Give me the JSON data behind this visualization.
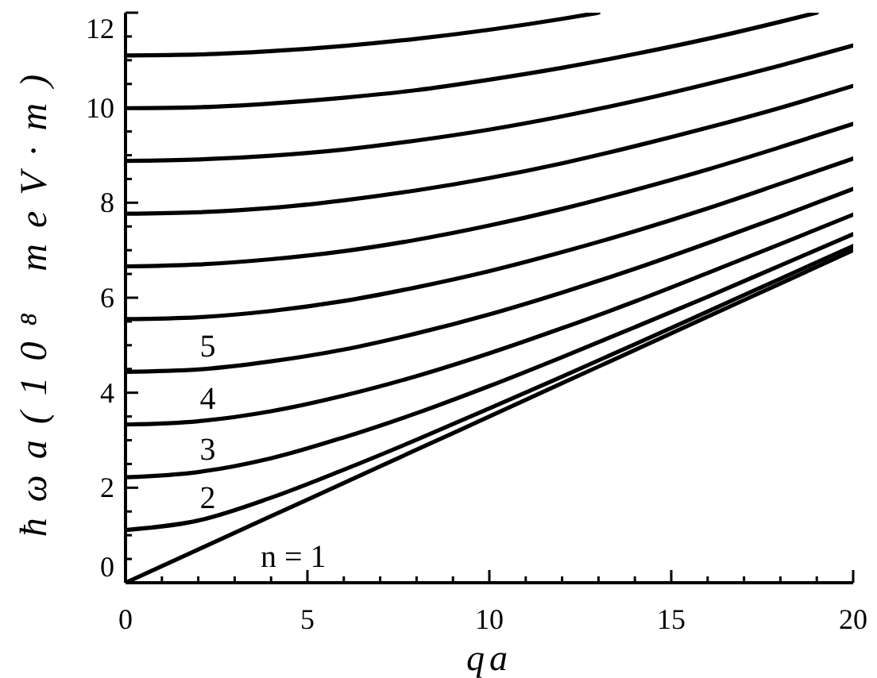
{
  "chart_data": {
    "type": "line",
    "xlabel": "qa",
    "ylabel": "ħωa(10⁸ meV·m)",
    "x": [
      0,
      2,
      4,
      6,
      8,
      10,
      12,
      14,
      16,
      18,
      20
    ],
    "series": [
      {
        "name": "n = 1",
        "color": "#000000",
        "values": [
          0,
          0.7,
          1.4,
          2.1,
          2.8,
          3.5,
          4.2,
          4.9,
          5.6,
          6.3,
          7.0
        ]
      },
      {
        "name": "2",
        "color": "#000000",
        "values": [
          1.11,
          1.31,
          1.79,
          2.38,
          3.01,
          3.67,
          4.34,
          5.02,
          5.71,
          6.4,
          7.09
        ]
      },
      {
        "name": "3",
        "color": "#000000",
        "values": [
          2.22,
          2.33,
          2.62,
          3.06,
          3.57,
          4.14,
          4.75,
          5.38,
          6.02,
          6.68,
          7.34
        ]
      },
      {
        "name": "4",
        "color": "#000000",
        "values": [
          3.33,
          3.4,
          3.61,
          3.94,
          4.35,
          4.83,
          5.36,
          5.92,
          6.52,
          7.13,
          7.75
        ]
      },
      {
        "name": "5",
        "color": "#000000",
        "values": [
          4.44,
          4.49,
          4.66,
          4.91,
          5.25,
          5.65,
          6.11,
          6.61,
          7.15,
          7.71,
          8.29
        ]
      },
      {
        "color": "#000000",
        "values": [
          5.55,
          5.59,
          5.72,
          5.93,
          6.22,
          6.56,
          6.96,
          7.4,
          7.88,
          8.4,
          8.93
        ]
      },
      {
        "color": "#000000",
        "values": [
          6.66,
          6.7,
          6.81,
          6.98,
          7.22,
          7.52,
          7.87,
          8.27,
          8.7,
          9.17,
          9.66
        ]
      },
      {
        "color": "#000000",
        "values": [
          7.77,
          7.8,
          7.89,
          8.05,
          8.26,
          8.52,
          8.83,
          9.19,
          9.58,
          10.0,
          10.46
        ]
      },
      {
        "color": "#000000",
        "values": [
          8.88,
          8.91,
          8.99,
          9.12,
          9.31,
          9.54,
          9.82,
          10.14,
          10.5,
          10.89,
          11.31
        ]
      },
      {
        "color": "#000000",
        "x": [
          0,
          2,
          4,
          6,
          8,
          10,
          12,
          14,
          16,
          18,
          19
        ],
        "values": [
          9.99,
          10.01,
          10.09,
          10.21,
          10.37,
          10.59,
          10.84,
          11.13,
          11.45,
          11.81,
          12.0
        ]
      },
      {
        "color": "#000000",
        "x": [
          0,
          2,
          4,
          6,
          8,
          10,
          12,
          13
        ],
        "values": [
          11.1,
          11.12,
          11.19,
          11.3,
          11.45,
          11.64,
          11.87,
          12.0
        ]
      }
    ],
    "xlim": [
      0,
      20
    ],
    "xticks": [
      0,
      {
        "value": 1,
        "label": null
      },
      {
        "value": 2,
        "label": null
      },
      {
        "value": 3,
        "label": null
      },
      {
        "value": 4,
        "label": null
      },
      5,
      {
        "value": 6,
        "label": null
      },
      {
        "value": 7,
        "label": null
      },
      {
        "value": 8,
        "label": null
      },
      {
        "value": 9,
        "label": null
      },
      10,
      {
        "value": 11,
        "label": null
      },
      {
        "value": 12,
        "label": null
      },
      {
        "value": 13,
        "label": null
      },
      {
        "value": 14,
        "label": null
      },
      15,
      {
        "value": 16,
        "label": null
      },
      {
        "value": 17,
        "label": null
      },
      {
        "value": 18,
        "label": null
      },
      {
        "value": 19,
        "label": null
      },
      20
    ],
    "ylim": [
      0,
      12
    ],
    "yticks": [
      0,
      {
        "value": 0.5,
        "label": null
      },
      {
        "value": 1,
        "label": null
      },
      {
        "value": 1.5,
        "label": null
      },
      2,
      {
        "value": 2.5,
        "label": null
      },
      {
        "value": 3,
        "label": null
      },
      {
        "value": 3.5,
        "label": null
      },
      4,
      {
        "value": 4.5,
        "label": null
      },
      {
        "value": 5,
        "label": null
      },
      {
        "value": 5.5,
        "label": null
      },
      6,
      {
        "value": 6.5,
        "label": null
      },
      {
        "value": 7,
        "label": null
      },
      {
        "value": 7.5,
        "label": null
      },
      8,
      {
        "value": 8.5,
        "label": null
      },
      {
        "value": 9,
        "label": null
      },
      {
        "value": 9.5,
        "label": null
      },
      10,
      {
        "value": 10.5,
        "label": null
      },
      {
        "value": 11,
        "label": null
      },
      {
        "value": 11.5,
        "label": null
      },
      12
    ],
    "grid": false,
    "marker": "none",
    "line_style": "solid"
  }
}
